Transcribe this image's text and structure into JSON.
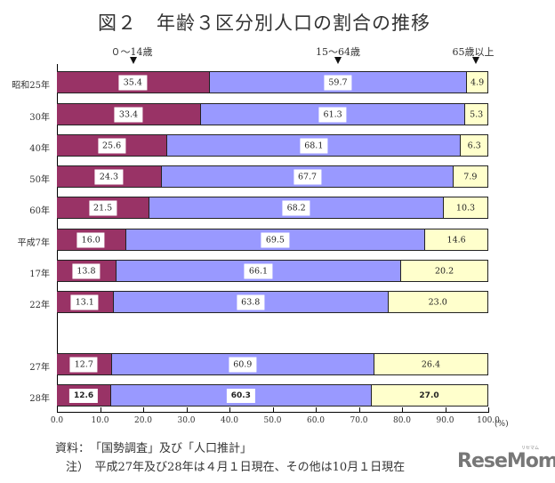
{
  "header": {
    "title": "図２　年齢３区分別人口の割合の推移",
    "group_labels": [
      "０～14歳",
      "15～64歳",
      "65歳以上"
    ]
  },
  "chart_data": {
    "type": "bar",
    "orientation": "horizontal",
    "stacked": true,
    "title": "図２　年齢３区分別人口の割合の推移",
    "xlabel": "(%)",
    "ylabel": "",
    "xlim": [
      0,
      100
    ],
    "x_ticks": [
      "0.0",
      "10.0",
      "20.0",
      "30.0",
      "40.0",
      "50.0",
      "60.0",
      "70.0",
      "80.0",
      "90.0",
      "100.0"
    ],
    "categories": [
      "昭和25年",
      "30年",
      "40年",
      "50年",
      "60年",
      "平成7年",
      "17年",
      "22年",
      "27年",
      "28年"
    ],
    "series": [
      {
        "name": "０～14歳",
        "color": "#993366",
        "values": [
          35.4,
          33.4,
          25.6,
          24.3,
          21.5,
          16.0,
          13.8,
          13.1,
          12.7,
          12.6
        ]
      },
      {
        "name": "15～64歳",
        "color": "#9999ff",
        "values": [
          59.7,
          61.3,
          68.1,
          67.7,
          68.2,
          69.5,
          66.1,
          63.8,
          60.9,
          60.3
        ]
      },
      {
        "name": "65歳以上",
        "color": "#ffffcc",
        "values": [
          4.9,
          5.3,
          6.3,
          7.9,
          10.3,
          14.6,
          20.2,
          23.0,
          26.4,
          27.0
        ]
      }
    ],
    "value_labels": [
      [
        "35.4",
        "59.7",
        "4.9"
      ],
      [
        "33.4",
        "61.3",
        "5.3"
      ],
      [
        "25.6",
        "68.1",
        "6.3"
      ],
      [
        "24.3",
        "67.7",
        "7.9"
      ],
      [
        "21.5",
        "68.2",
        "10.3"
      ],
      [
        "16.0",
        "69.5",
        "14.6"
      ],
      [
        "13.8",
        "66.1",
        "20.2"
      ],
      [
        "13.1",
        "63.8",
        "23.0"
      ],
      [
        "12.7",
        "60.9",
        "26.4"
      ],
      [
        "12.6",
        "60.3",
        "27.0"
      ]
    ],
    "legend_position": "top (labels with arrows)",
    "grid": false
  },
  "axis": {
    "unit": "(%)",
    "ticks": [
      "0.0",
      "10.0",
      "20.0",
      "30.0",
      "40.0",
      "50.0",
      "60.0",
      "70.0",
      "80.0",
      "90.0",
      "100.0"
    ]
  },
  "notes": {
    "source": "資料：　「国勢調査」及び「人口推計」",
    "note": "注）　平成27年及び28年は４月１日現在、その他は10月１日現在"
  },
  "watermark": {
    "text": "ReseMom",
    "sub": "リセマム"
  }
}
